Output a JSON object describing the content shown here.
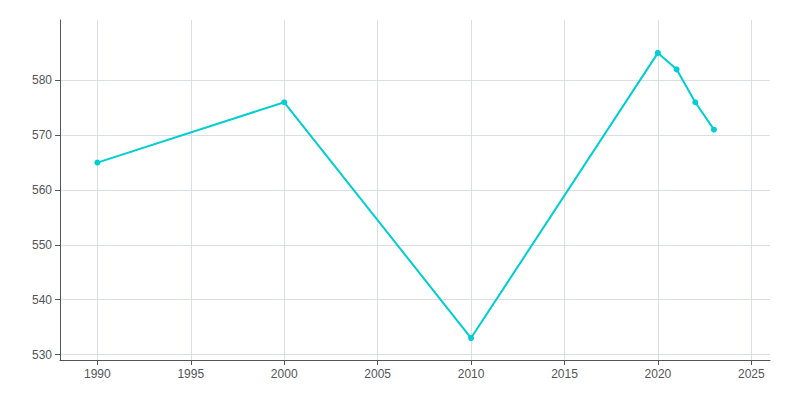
{
  "chart_data": {
    "type": "line",
    "x": [
      1990,
      2000,
      2010,
      2020,
      2021,
      2022,
      2023
    ],
    "values": [
      565,
      576,
      533,
      585,
      582,
      576,
      571
    ],
    "color": "#00CED1",
    "marker": "circle",
    "xlim": [
      1988,
      2026
    ],
    "ylim": [
      529,
      591
    ],
    "xticks": [
      1990,
      1995,
      2000,
      2005,
      2010,
      2015,
      2020,
      2025
    ],
    "yticks": [
      530,
      540,
      550,
      560,
      570,
      580
    ],
    "grid": true
  }
}
